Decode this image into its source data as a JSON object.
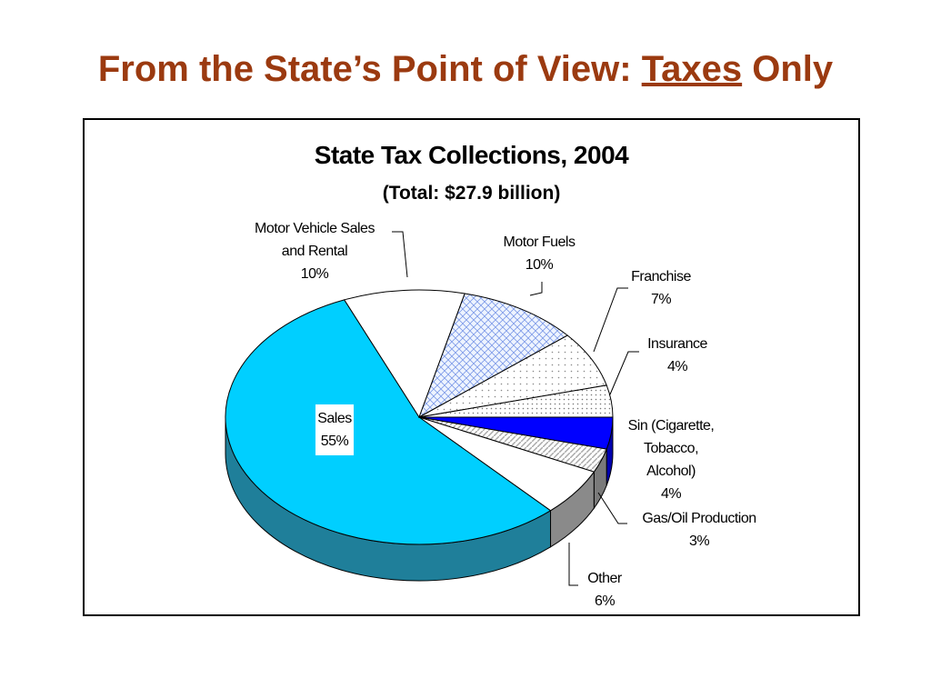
{
  "slide": {
    "title_prefix": "From the State’s Point of View: ",
    "title_underlined": "Taxes",
    "title_suffix": " Only"
  },
  "chart_data": {
    "type": "pie",
    "title": "State Tax Collections, 2004",
    "subtitle": "(Total: $27.9 billion)",
    "unit": "%",
    "slices": [
      {
        "label": "Sales",
        "value": 55,
        "display": "55%",
        "color": "#00cfff"
      },
      {
        "label": "Motor Vehicle Sales and Rental",
        "value": 10,
        "display": "10%",
        "color": "#ffffff"
      },
      {
        "label": "Motor Fuels",
        "value": 10,
        "display": "10%",
        "color": "#dce8ff"
      },
      {
        "label": "Franchise",
        "value": 7,
        "display": "7%",
        "color": "#ffffff"
      },
      {
        "label": "Insurance",
        "value": 4,
        "display": "4%",
        "color": "#ffffff"
      },
      {
        "label": "Sin (Cigarette, Tobacco, Alcohol)",
        "value": 4,
        "display": "4%",
        "color": "#0000ff"
      },
      {
        "label": "Gas/Oil Production",
        "value": 3,
        "display": "3%",
        "color": "#e6e6e6"
      },
      {
        "label": "Other",
        "value": 6,
        "display": "6%",
        "color": "#ffffff"
      }
    ],
    "labels": [
      {
        "lines": [
          "Sales",
          "55%"
        ]
      },
      {
        "lines": [
          "Motor Vehicle Sales",
          "and Rental",
          "10%"
        ]
      },
      {
        "lines": [
          "Motor Fuels",
          "10%"
        ]
      },
      {
        "lines": [
          "Franchise",
          "7%"
        ]
      },
      {
        "lines": [
          "Insurance",
          "4%"
        ]
      },
      {
        "lines": [
          "Sin (Cigarette,",
          "Tobacco,",
          "Alcohol)",
          "4%"
        ]
      },
      {
        "lines": [
          "Gas/Oil Production",
          "3%"
        ]
      },
      {
        "lines": [
          "Other",
          "6%"
        ]
      }
    ]
  }
}
